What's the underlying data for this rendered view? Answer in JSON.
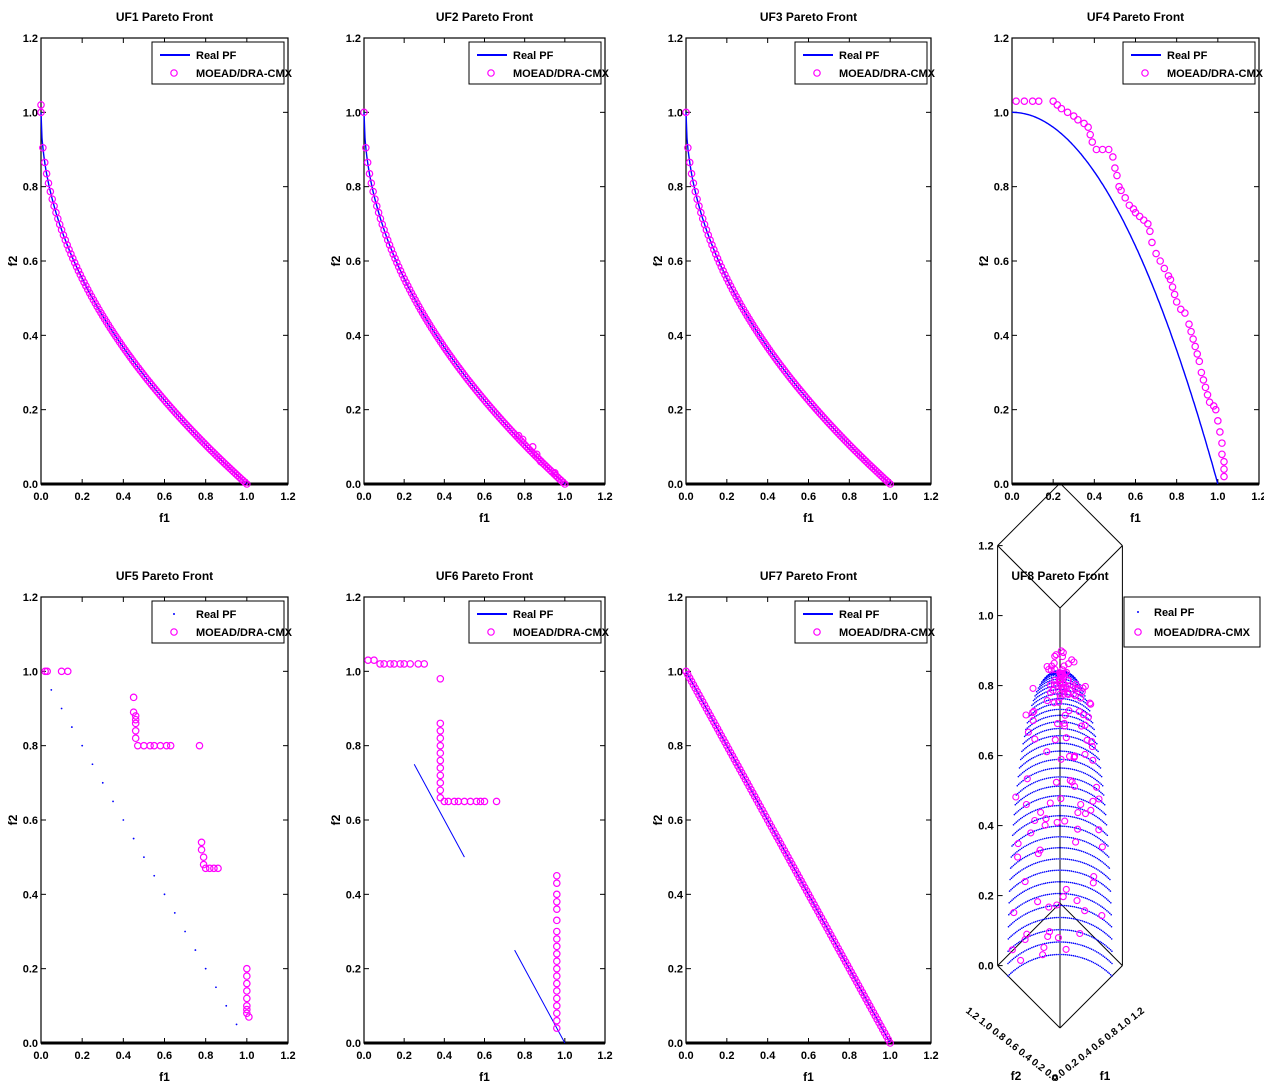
{
  "chart_data": [
    {
      "type": "line",
      "title": "UF1 Pareto Front",
      "xlabel": "f1",
      "ylabel": "f2",
      "xlim": [
        0,
        1.2
      ],
      "ylim": [
        0,
        1.2
      ],
      "xticks": [
        "0.0",
        "0.2",
        "0.4",
        "0.6",
        "0.8",
        "1.0",
        "1.2"
      ],
      "yticks": [
        "0.0",
        "0.2",
        "0.4",
        "0.6",
        "0.8",
        "1.0",
        "1.2"
      ],
      "legend": "top-right",
      "grid": false,
      "series": [
        {
          "name": "Real PF",
          "style": "line",
          "color": "#0000ff",
          "shape": "f2 = 1 - sqrt(f1)",
          "x_range": [
            0,
            1
          ]
        },
        {
          "name": "MOEAD/DRA-CMX",
          "style": "markers",
          "color": "#ff00ff",
          "shape": "f2 = 1 - sqrt(f1)",
          "x_range": [
            0,
            1
          ],
          "extra_points": [
            [
              0.0,
              1.02
            ]
          ]
        }
      ]
    },
    {
      "type": "line",
      "title": "UF2 Pareto Front",
      "xlabel": "f1",
      "ylabel": "f2",
      "xlim": [
        0,
        1.2
      ],
      "ylim": [
        0,
        1.2
      ],
      "xticks": [
        "0.0",
        "0.2",
        "0.4",
        "0.6",
        "0.8",
        "1.0",
        "1.2"
      ],
      "yticks": [
        "0.0",
        "0.2",
        "0.4",
        "0.6",
        "0.8",
        "1.0",
        "1.2"
      ],
      "legend": "top-right",
      "grid": false,
      "series": [
        {
          "name": "Real PF",
          "style": "line",
          "color": "#0000ff",
          "shape": "f2 = 1 - sqrt(f1)",
          "x_range": [
            0,
            1
          ]
        },
        {
          "name": "MOEAD/DRA-CMX",
          "style": "markers",
          "color": "#ff00ff",
          "shape": "f2 = 1 - sqrt(f1)",
          "x_range": [
            0,
            1
          ],
          "extra_points": [
            [
              0.77,
              0.13
            ],
            [
              0.79,
              0.12
            ],
            [
              0.84,
              0.1
            ],
            [
              0.86,
              0.08
            ],
            [
              0.88,
              0.06
            ],
            [
              0.95,
              0.03
            ]
          ]
        }
      ]
    },
    {
      "type": "line",
      "title": "UF3 Pareto Front",
      "xlabel": "f1",
      "ylabel": "f2",
      "xlim": [
        0,
        1.2
      ],
      "ylim": [
        0,
        1.2
      ],
      "xticks": [
        "0.0",
        "0.2",
        "0.4",
        "0.6",
        "0.8",
        "1.0",
        "1.2"
      ],
      "yticks": [
        "0.0",
        "0.2",
        "0.4",
        "0.6",
        "0.8",
        "1.0",
        "1.2"
      ],
      "legend": "top-right",
      "grid": false,
      "series": [
        {
          "name": "Real PF",
          "style": "line",
          "color": "#0000ff",
          "shape": "f2 = 1 - sqrt(f1)",
          "x_range": [
            0,
            1
          ]
        },
        {
          "name": "MOEAD/DRA-CMX",
          "style": "markers",
          "color": "#ff00ff",
          "shape": "f2 = 1 - sqrt(f1)",
          "x_range": [
            0,
            1
          ]
        }
      ]
    },
    {
      "type": "line",
      "title": "UF4 Pareto Front",
      "xlabel": "f1",
      "ylabel": "f2",
      "xlim": [
        0,
        1.2
      ],
      "ylim": [
        0,
        1.2
      ],
      "xticks": [
        "0.0",
        "0.2",
        "0.4",
        "0.6",
        "0.8",
        "1.0",
        "1.2"
      ],
      "yticks": [
        "0.0",
        "0.2",
        "0.4",
        "0.6",
        "0.8",
        "1.0",
        "1.2"
      ],
      "legend": "top-right",
      "grid": false,
      "series": [
        {
          "name": "Real PF",
          "style": "line",
          "color": "#0000ff",
          "shape": "f2 = 1 - f1^2",
          "x_range": [
            0,
            1
          ]
        },
        {
          "name": "MOEAD/DRA-CMX",
          "style": "markers",
          "color": "#ff00ff",
          "points": [
            [
              0.02,
              1.03
            ],
            [
              0.06,
              1.03
            ],
            [
              0.1,
              1.03
            ],
            [
              0.13,
              1.03
            ],
            [
              0.2,
              1.03
            ],
            [
              0.22,
              1.02
            ],
            [
              0.24,
              1.01
            ],
            [
              0.27,
              1.0
            ],
            [
              0.3,
              0.99
            ],
            [
              0.32,
              0.98
            ],
            [
              0.35,
              0.97
            ],
            [
              0.37,
              0.96
            ],
            [
              0.38,
              0.94
            ],
            [
              0.39,
              0.92
            ],
            [
              0.41,
              0.9
            ],
            [
              0.44,
              0.9
            ],
            [
              0.47,
              0.9
            ],
            [
              0.49,
              0.88
            ],
            [
              0.5,
              0.85
            ],
            [
              0.51,
              0.83
            ],
            [
              0.52,
              0.8
            ],
            [
              0.53,
              0.79
            ],
            [
              0.55,
              0.77
            ],
            [
              0.57,
              0.75
            ],
            [
              0.59,
              0.74
            ],
            [
              0.6,
              0.73
            ],
            [
              0.62,
              0.72
            ],
            [
              0.64,
              0.71
            ],
            [
              0.66,
              0.7
            ],
            [
              0.67,
              0.68
            ],
            [
              0.68,
              0.65
            ],
            [
              0.7,
              0.62
            ],
            [
              0.72,
              0.6
            ],
            [
              0.74,
              0.58
            ],
            [
              0.76,
              0.56
            ],
            [
              0.77,
              0.55
            ],
            [
              0.78,
              0.53
            ],
            [
              0.79,
              0.51
            ],
            [
              0.8,
              0.49
            ],
            [
              0.82,
              0.47
            ],
            [
              0.84,
              0.46
            ],
            [
              0.86,
              0.43
            ],
            [
              0.87,
              0.41
            ],
            [
              0.88,
              0.39
            ],
            [
              0.89,
              0.37
            ],
            [
              0.9,
              0.35
            ],
            [
              0.91,
              0.33
            ],
            [
              0.92,
              0.3
            ],
            [
              0.93,
              0.28
            ],
            [
              0.94,
              0.26
            ],
            [
              0.95,
              0.24
            ],
            [
              0.96,
              0.22
            ],
            [
              0.98,
              0.21
            ],
            [
              0.99,
              0.2
            ],
            [
              1.0,
              0.17
            ],
            [
              1.01,
              0.14
            ],
            [
              1.02,
              0.11
            ],
            [
              1.02,
              0.08
            ],
            [
              1.03,
              0.06
            ],
            [
              1.03,
              0.04
            ],
            [
              1.03,
              0.02
            ]
          ]
        }
      ]
    },
    {
      "type": "scatter",
      "title": "UF5 Pareto Front",
      "xlabel": "f1",
      "ylabel": "f2",
      "xlim": [
        0,
        1.2
      ],
      "ylim": [
        0,
        1.2
      ],
      "xticks": [
        "0.0",
        "0.2",
        "0.4",
        "0.6",
        "0.8",
        "1.0",
        "1.2"
      ],
      "yticks": [
        "0.0",
        "0.2",
        "0.4",
        "0.6",
        "0.8",
        "1.0",
        "1.2"
      ],
      "legend": "top-right",
      "grid": false,
      "series": [
        {
          "name": "Real PF",
          "style": "dots",
          "color": "#0000ff",
          "shape": "f2 = 1 - f1",
          "x_values": [
            0.05,
            0.1,
            0.15,
            0.2,
            0.25,
            0.3,
            0.35,
            0.4,
            0.45,
            0.5,
            0.55,
            0.6,
            0.65,
            0.7,
            0.75,
            0.8,
            0.85,
            0.9,
            0.95
          ]
        },
        {
          "name": "MOEAD/DRA-CMX",
          "style": "markers",
          "color": "#ff00ff",
          "points": [
            [
              0.02,
              1.0
            ],
            [
              0.03,
              1.0
            ],
            [
              0.1,
              1.0
            ],
            [
              0.13,
              1.0
            ],
            [
              0.45,
              0.93
            ],
            [
              0.45,
              0.89
            ],
            [
              0.46,
              0.88
            ],
            [
              0.46,
              0.87
            ],
            [
              0.46,
              0.86
            ],
            [
              0.46,
              0.84
            ],
            [
              0.46,
              0.82
            ],
            [
              0.47,
              0.8
            ],
            [
              0.5,
              0.8
            ],
            [
              0.53,
              0.8
            ],
            [
              0.55,
              0.8
            ],
            [
              0.58,
              0.8
            ],
            [
              0.61,
              0.8
            ],
            [
              0.63,
              0.8
            ],
            [
              0.77,
              0.8
            ],
            [
              0.78,
              0.54
            ],
            [
              0.78,
              0.52
            ],
            [
              0.79,
              0.5
            ],
            [
              0.79,
              0.48
            ],
            [
              0.8,
              0.47
            ],
            [
              0.82,
              0.47
            ],
            [
              0.84,
              0.47
            ],
            [
              0.86,
              0.47
            ],
            [
              1.0,
              0.2
            ],
            [
              1.0,
              0.18
            ],
            [
              1.0,
              0.16
            ],
            [
              1.0,
              0.14
            ],
            [
              1.0,
              0.12
            ],
            [
              1.0,
              0.1
            ],
            [
              1.0,
              0.09
            ],
            [
              1.0,
              0.08
            ],
            [
              1.01,
              0.07
            ]
          ]
        }
      ]
    },
    {
      "type": "scatter",
      "title": "UF6 Pareto Front",
      "xlabel": "f1",
      "ylabel": "f2",
      "xlim": [
        0,
        1.2
      ],
      "ylim": [
        0,
        1.2
      ],
      "xticks": [
        "0.0",
        "0.2",
        "0.4",
        "0.6",
        "0.8",
        "1.0",
        "1.2"
      ],
      "yticks": [
        "0.0",
        "0.2",
        "0.4",
        "0.6",
        "0.8",
        "1.0",
        "1.2"
      ],
      "legend": "top-right",
      "grid": false,
      "series": [
        {
          "name": "Real PF",
          "style": "line",
          "color": "#0000ff",
          "segments": [
            [
              [
                0.25,
                0.75
              ],
              [
                0.5,
                0.5
              ]
            ],
            [
              [
                0.75,
                0.25
              ],
              [
                1.0,
                0.0
              ]
            ]
          ]
        },
        {
          "name": "MOEAD/DRA-CMX",
          "style": "markers",
          "color": "#ff00ff",
          "points": [
            [
              0.02,
              1.03
            ],
            [
              0.05,
              1.03
            ],
            [
              0.08,
              1.02
            ],
            [
              0.1,
              1.02
            ],
            [
              0.13,
              1.02
            ],
            [
              0.15,
              1.02
            ],
            [
              0.18,
              1.02
            ],
            [
              0.2,
              1.02
            ],
            [
              0.23,
              1.02
            ],
            [
              0.27,
              1.02
            ],
            [
              0.3,
              1.02
            ],
            [
              0.38,
              0.98
            ],
            [
              0.38,
              0.86
            ],
            [
              0.38,
              0.84
            ],
            [
              0.38,
              0.82
            ],
            [
              0.38,
              0.8
            ],
            [
              0.38,
              0.78
            ],
            [
              0.38,
              0.76
            ],
            [
              0.38,
              0.74
            ],
            [
              0.38,
              0.72
            ],
            [
              0.38,
              0.7
            ],
            [
              0.38,
              0.68
            ],
            [
              0.38,
              0.66
            ],
            [
              0.4,
              0.65
            ],
            [
              0.42,
              0.65
            ],
            [
              0.45,
              0.65
            ],
            [
              0.47,
              0.65
            ],
            [
              0.5,
              0.65
            ],
            [
              0.53,
              0.65
            ],
            [
              0.56,
              0.65
            ],
            [
              0.58,
              0.65
            ],
            [
              0.6,
              0.65
            ],
            [
              0.66,
              0.65
            ],
            [
              0.96,
              0.45
            ],
            [
              0.96,
              0.43
            ],
            [
              0.96,
              0.4
            ],
            [
              0.96,
              0.38
            ],
            [
              0.96,
              0.36
            ],
            [
              0.96,
              0.33
            ],
            [
              0.96,
              0.3
            ],
            [
              0.96,
              0.28
            ],
            [
              0.96,
              0.26
            ],
            [
              0.96,
              0.24
            ],
            [
              0.96,
              0.22
            ],
            [
              0.96,
              0.2
            ],
            [
              0.96,
              0.18
            ],
            [
              0.96,
              0.16
            ],
            [
              0.96,
              0.14
            ],
            [
              0.96,
              0.12
            ],
            [
              0.96,
              0.1
            ],
            [
              0.96,
              0.08
            ],
            [
              0.96,
              0.06
            ],
            [
              0.96,
              0.04
            ]
          ]
        }
      ]
    },
    {
      "type": "line",
      "title": "UF7 Pareto Front",
      "xlabel": "f1",
      "ylabel": "f2",
      "xlim": [
        0,
        1.2
      ],
      "ylim": [
        0,
        1.2
      ],
      "xticks": [
        "0.0",
        "0.2",
        "0.4",
        "0.6",
        "0.8",
        "1.0",
        "1.2"
      ],
      "yticks": [
        "0.0",
        "0.2",
        "0.4",
        "0.6",
        "0.8",
        "1.0",
        "1.2"
      ],
      "legend": "top-right",
      "grid": false,
      "series": [
        {
          "name": "Real PF",
          "style": "line",
          "color": "#0000ff",
          "shape": "f2 = 1 - f1",
          "x_range": [
            0,
            1
          ]
        },
        {
          "name": "MOEAD/DRA-CMX",
          "style": "markers",
          "color": "#ff00ff",
          "shape": "f2 = 1 - f1",
          "x_range": [
            0,
            1
          ]
        }
      ]
    },
    {
      "type": "scatter",
      "title": "UF8 Pareto Front",
      "projection": "3d",
      "xlabel": "f1",
      "ylabel": "f2",
      "zlim": [
        0,
        1.2
      ],
      "zticks": [
        "0.0",
        "0.2",
        "0.4",
        "0.6",
        "0.8",
        "1.0",
        "1.2"
      ],
      "floor_tick_labels_f2": "1.2 1.0 0.8 0.6 0.4 0.2 0.0",
      "floor_tick_labels_f1": "0.0 0.2 0.4 0.6 0.8 1.0 1.2",
      "legend": "top-right",
      "grid": false,
      "series": [
        {
          "name": "Real PF",
          "style": "dots",
          "color": "#0000ff",
          "shape": "unit sphere octant f1^2+f2^2+f3^2 = 1"
        },
        {
          "name": "MOEAD/DRA-CMX",
          "style": "markers",
          "color": "#ff00ff",
          "shape": "scattered near sphere octant"
        }
      ]
    }
  ]
}
